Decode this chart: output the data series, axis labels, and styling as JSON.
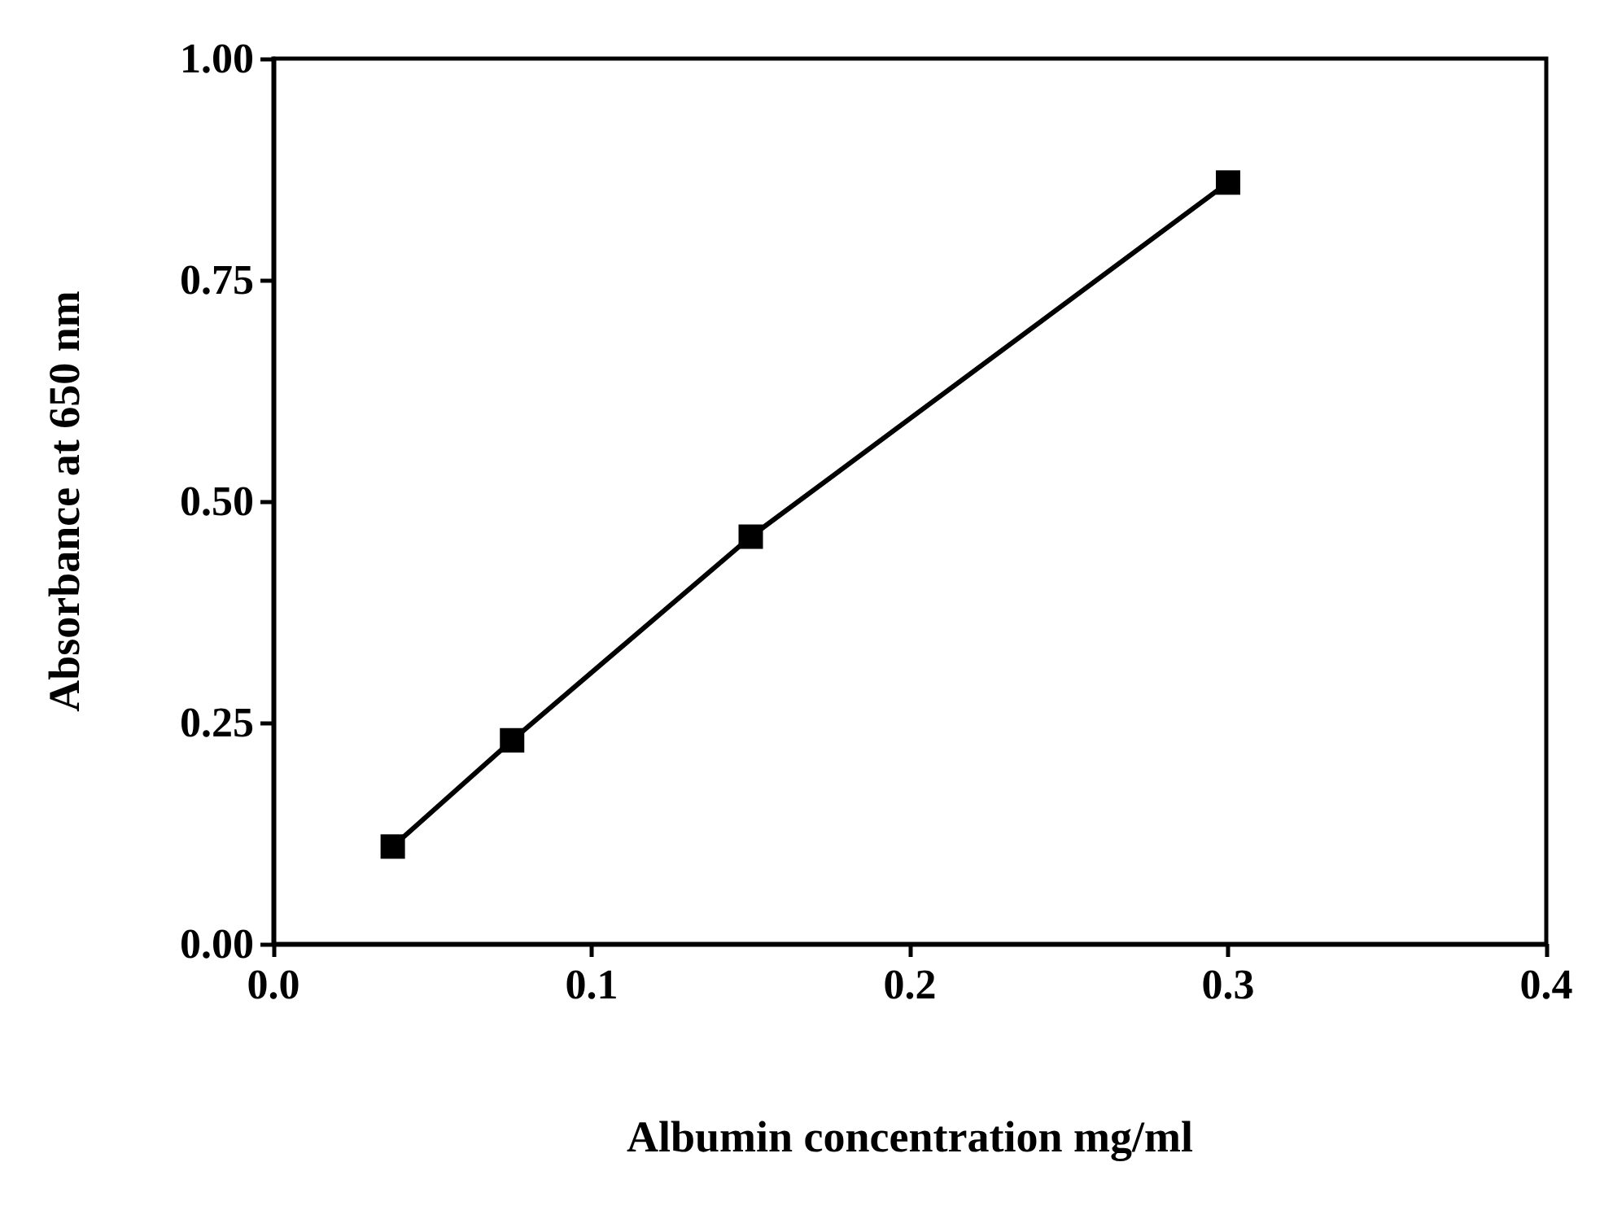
{
  "chart_data": {
    "type": "line",
    "xlabel": "Albumin concentration mg/ml",
    "ylabel": "Absorbance at 650 nm",
    "x": [
      0.0375,
      0.075,
      0.15,
      0.3
    ],
    "series": [
      {
        "color": "#000000",
        "values": [
          0.11,
          0.23,
          0.46,
          0.86
        ]
      }
    ],
    "xlim": [
      0,
      0.4
    ],
    "xticks": [
      {
        "value": 0,
        "label": "0.0"
      },
      {
        "value": 0.1,
        "label": "0.1"
      },
      {
        "value": 0.2,
        "label": "0.2"
      },
      {
        "value": 0.3,
        "label": "0.3"
      },
      {
        "value": 0.4,
        "label": "0.4"
      }
    ],
    "ylim": [
      0,
      1
    ],
    "yticks": [
      {
        "value": 0,
        "label": "0.00"
      },
      {
        "value": 0.25,
        "label": "0.25"
      },
      {
        "value": 0.5,
        "label": "0.50"
      },
      {
        "value": 0.75,
        "label": "0.75"
      },
      {
        "value": 1,
        "label": "1.00"
      }
    ],
    "grid": false,
    "marker": "square",
    "line_style": "solid"
  }
}
